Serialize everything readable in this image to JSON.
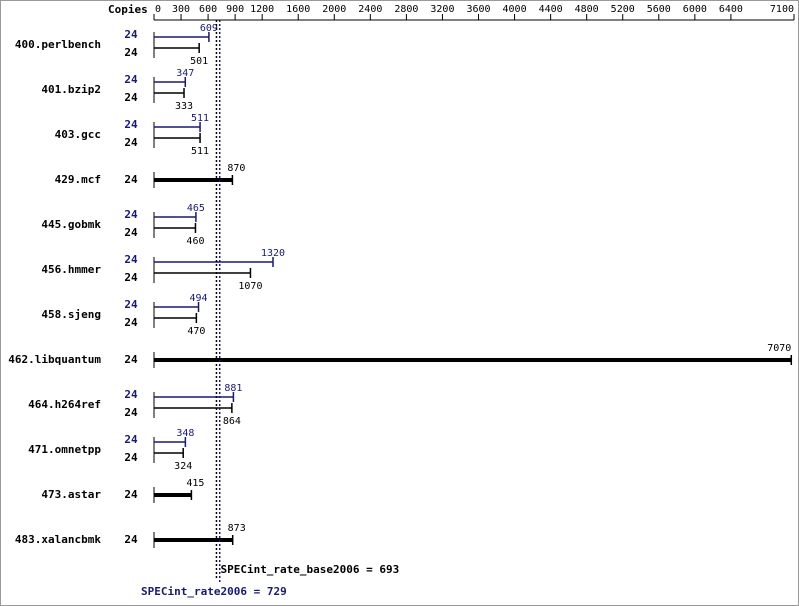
{
  "chart_data": {
    "type": "bar",
    "orientation": "horizontal",
    "copies_label": "Copies",
    "categories": [
      "400.perlbench",
      "401.bzip2",
      "403.gcc",
      "429.mcf",
      "445.gobmk",
      "456.hmmer",
      "458.sjeng",
      "462.libquantum",
      "464.h264ref",
      "471.omnetpp",
      "473.astar",
      "483.xalancbmk"
    ],
    "series": [
      {
        "color": "#191970",
        "copies": [
          24,
          24,
          24,
          null,
          24,
          24,
          24,
          null,
          24,
          24,
          null,
          null
        ],
        "values": [
          609,
          347,
          511,
          null,
          465,
          1320,
          494,
          null,
          881,
          348,
          null,
          null
        ]
      },
      {
        "color": "#000000",
        "copies": [
          24,
          24,
          24,
          24,
          24,
          24,
          24,
          24,
          24,
          24,
          24,
          24
        ],
        "values": [
          501,
          333,
          511,
          870,
          460,
          1070,
          470,
          7070,
          864,
          324,
          415,
          873
        ]
      }
    ],
    "xlim": [
      0,
      7100
    ],
    "xticks": [
      0,
      300,
      600,
      900,
      1200,
      1600,
      2000,
      2400,
      2800,
      3200,
      3600,
      4000,
      4400,
      4800,
      5200,
      5600,
      6000,
      6400,
      7100
    ],
    "reference_lines": [
      {
        "value": 693,
        "label": "SPECint_rate_base2006 = 693",
        "color": "#000000"
      },
      {
        "value": 729,
        "label": "SPECint_rate2006 = 729",
        "color": "#191970"
      }
    ]
  }
}
